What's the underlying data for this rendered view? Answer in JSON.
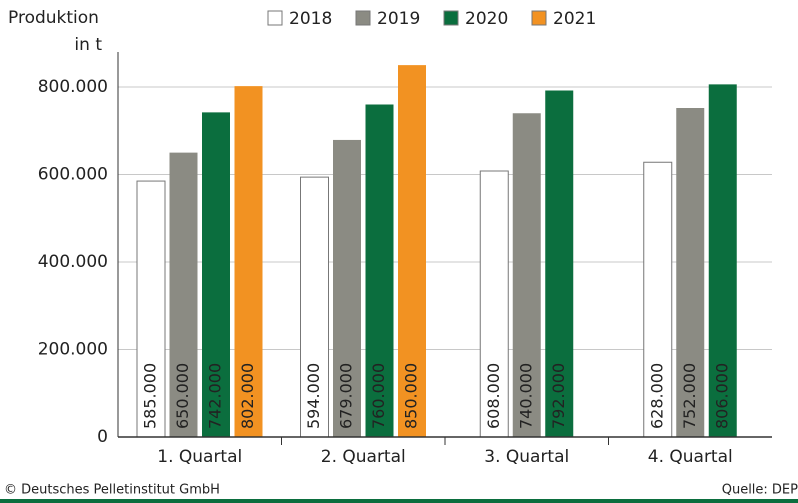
{
  "chart_data": {
    "type": "bar",
    "y_label": [
      "Produktion",
      "in t"
    ],
    "categories": [
      "1. Quartal",
      "2. Quartal",
      "3. Quartal",
      "4. Quartal"
    ],
    "series": [
      {
        "name": "2018",
        "color": "#ffffff",
        "values": [
          585000,
          594000,
          608000,
          628000
        ],
        "value_labels": [
          "585.000",
          "594.000",
          "608.000",
          "628.000"
        ]
      },
      {
        "name": "2019",
        "color": "#8b8b83",
        "values": [
          650000,
          679000,
          740000,
          752000
        ],
        "value_labels": [
          "650.000",
          "679.000",
          "740.000",
          "752.000"
        ]
      },
      {
        "name": "2020",
        "color": "#0b6e3e",
        "values": [
          742000,
          760000,
          792000,
          806000
        ],
        "value_labels": [
          "742.000",
          "760.000",
          "792.000",
          "806.000"
        ]
      },
      {
        "name": "2021",
        "color": "#f29222",
        "values": [
          802000,
          850000,
          null,
          null
        ],
        "value_labels": [
          "802.000",
          "850.000",
          null,
          null
        ]
      }
    ],
    "ylim": [
      0,
      880000
    ],
    "yticks": [
      0,
      {
        "value": 200000,
        "label": "200.000"
      },
      {
        "value": 400000,
        "label": "400.000"
      },
      {
        "value": 600000,
        "label": "600.000"
      },
      {
        "value": 800000,
        "label": "800.000"
      }
    ],
    "grid": true,
    "legend": "top",
    "footer_left": "© Deutsches Pelletinstitut GmbH",
    "footer_right": "Quelle: DEP"
  }
}
